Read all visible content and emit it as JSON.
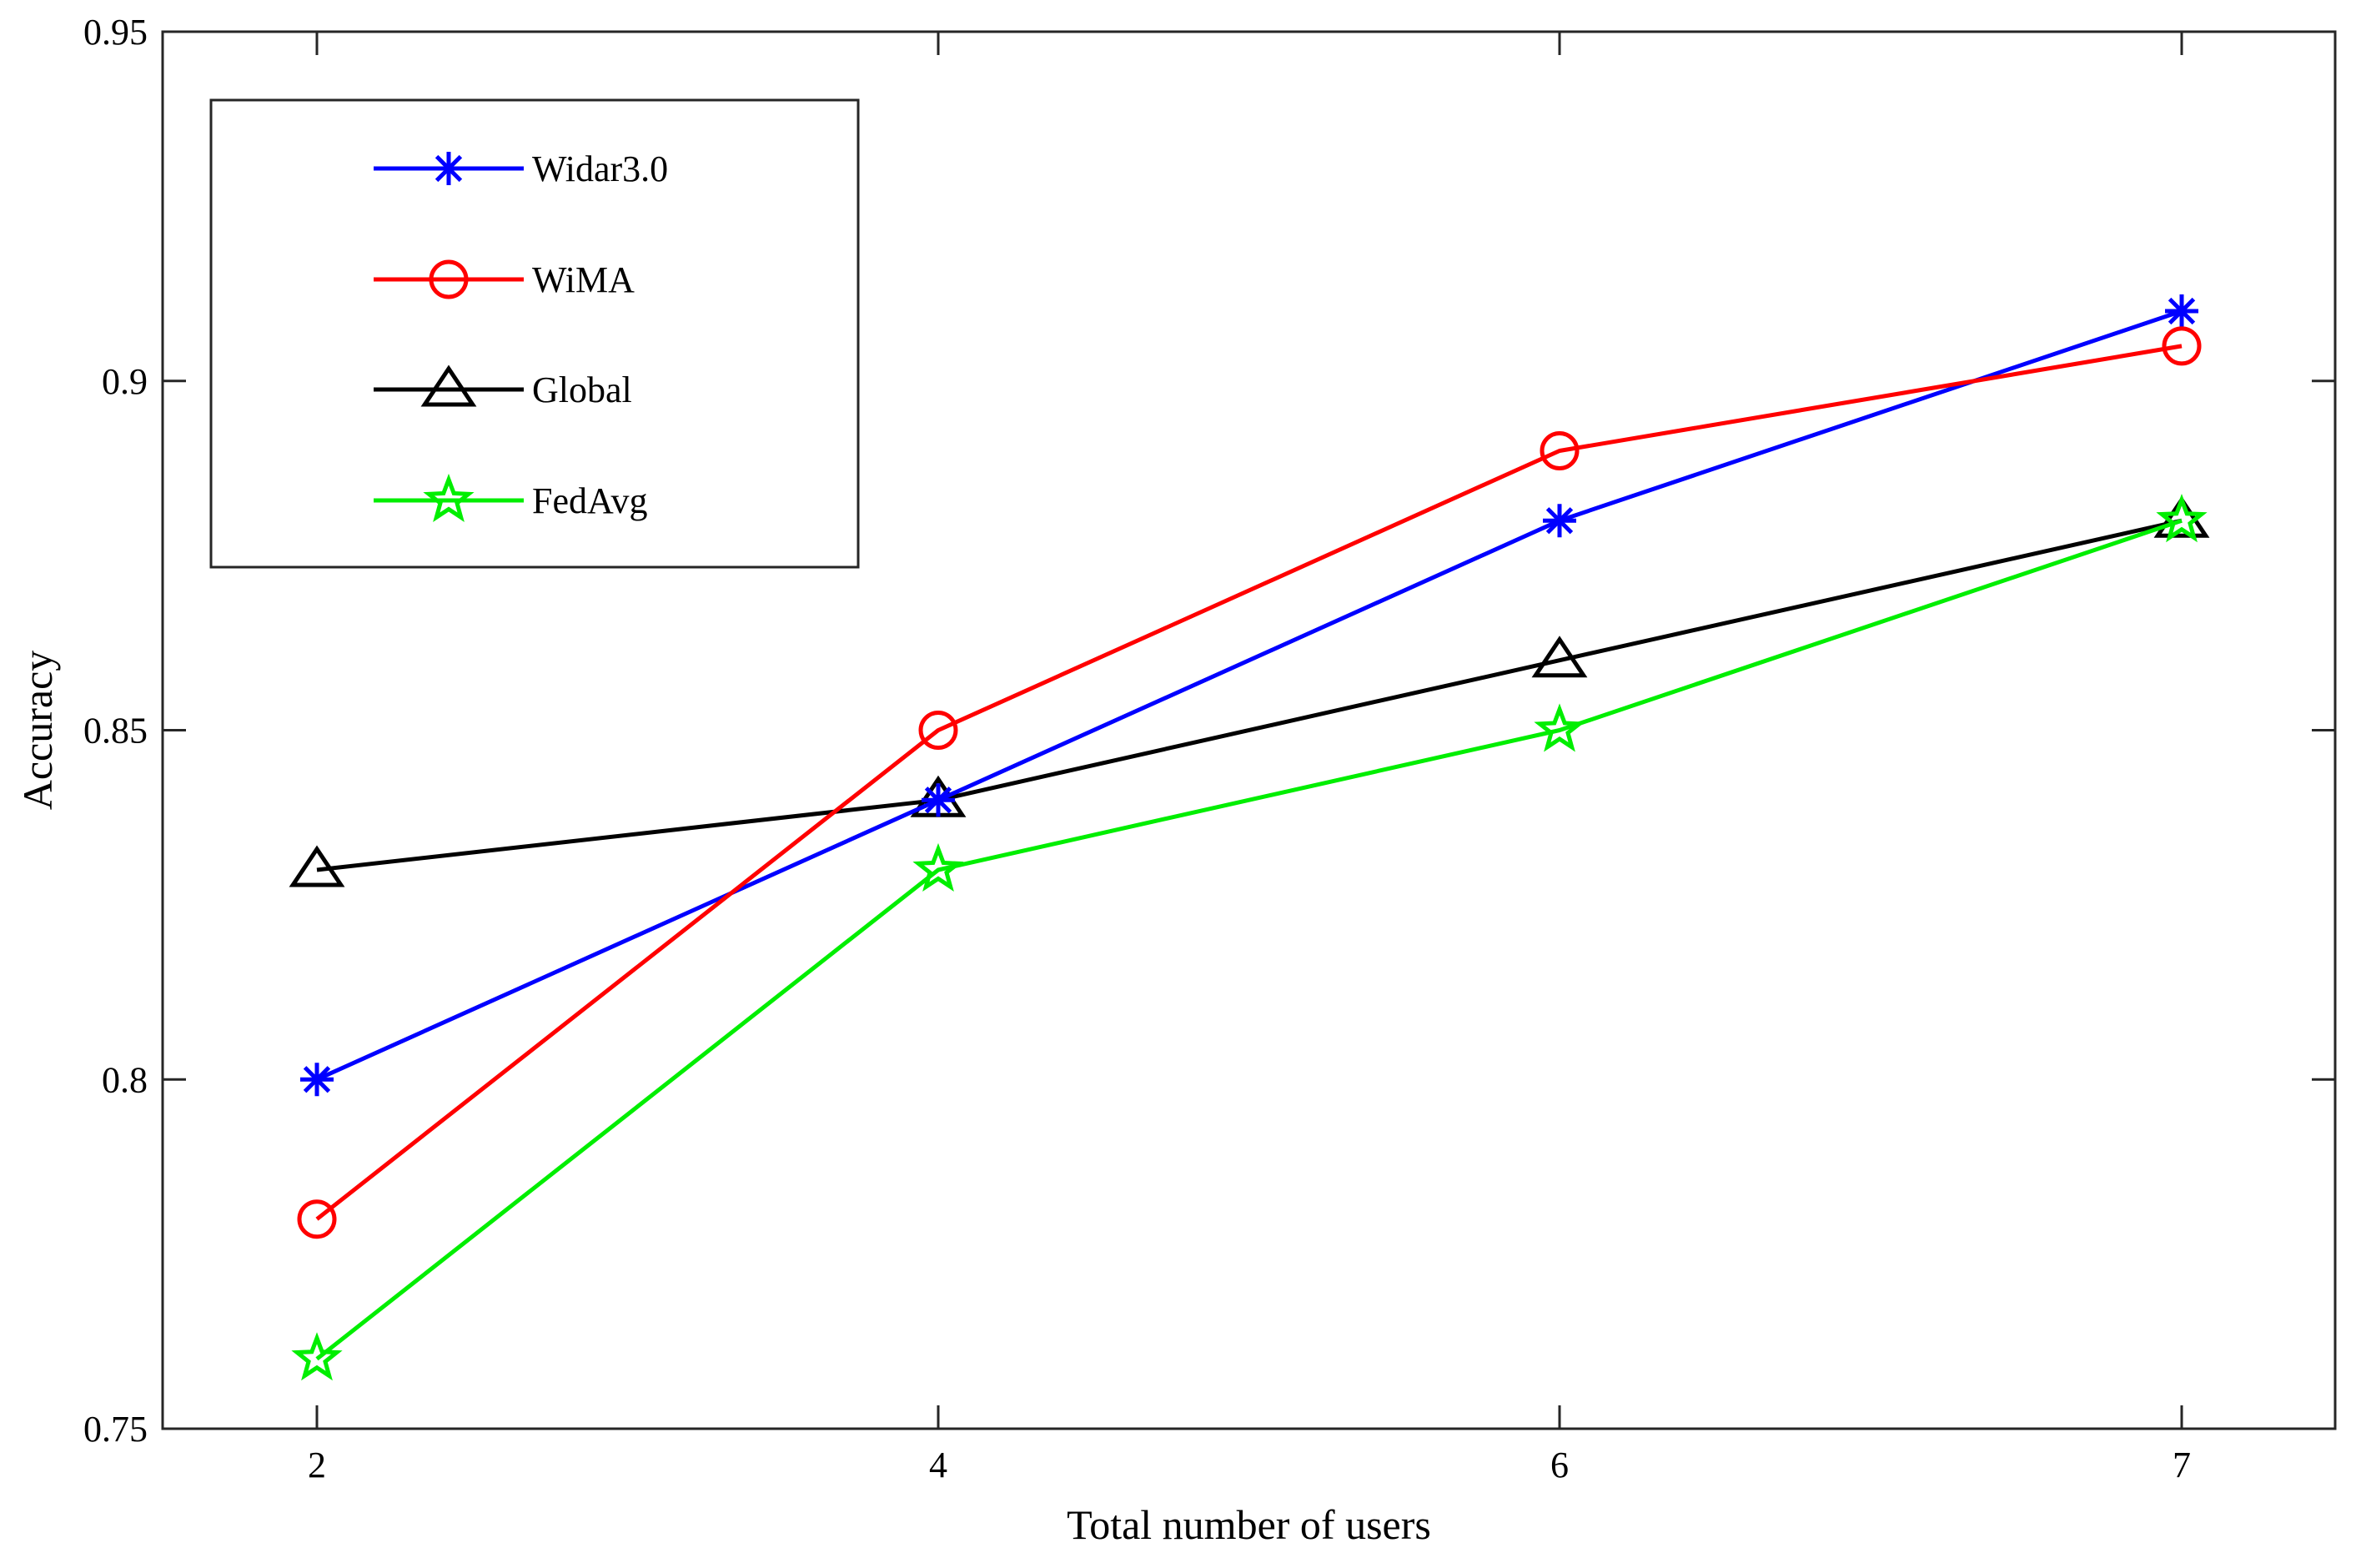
{
  "chart_data": {
    "type": "line",
    "title": "",
    "xlabel": "Total number of users",
    "ylabel": "Accuracy",
    "categories": [
      "2",
      "4",
      "6",
      "7"
    ],
    "ylim": [
      0.75,
      0.95
    ],
    "yticks": [
      "0.75",
      "0.8",
      "0.85",
      "0.9",
      "0.95"
    ],
    "ytick_values": [
      0.75,
      0.8,
      0.85,
      0.9,
      0.95
    ],
    "grid": false,
    "legend_position": "top-left",
    "series": [
      {
        "name": "Widar3.0",
        "color": "#0000ff",
        "marker": "asterisk",
        "values": [
          0.8,
          0.84,
          0.88,
          0.91
        ]
      },
      {
        "name": "WiMA",
        "color": "#ff0000",
        "marker": "circle",
        "values": [
          0.78,
          0.85,
          0.89,
          0.905
        ]
      },
      {
        "name": "Global",
        "color": "#000000",
        "marker": "triangle",
        "values": [
          0.83,
          0.84,
          0.86,
          0.88
        ]
      },
      {
        "name": "FedAvg",
        "color": "#00ee00",
        "marker": "star",
        "values": [
          0.76,
          0.83,
          0.85,
          0.88
        ]
      }
    ]
  }
}
